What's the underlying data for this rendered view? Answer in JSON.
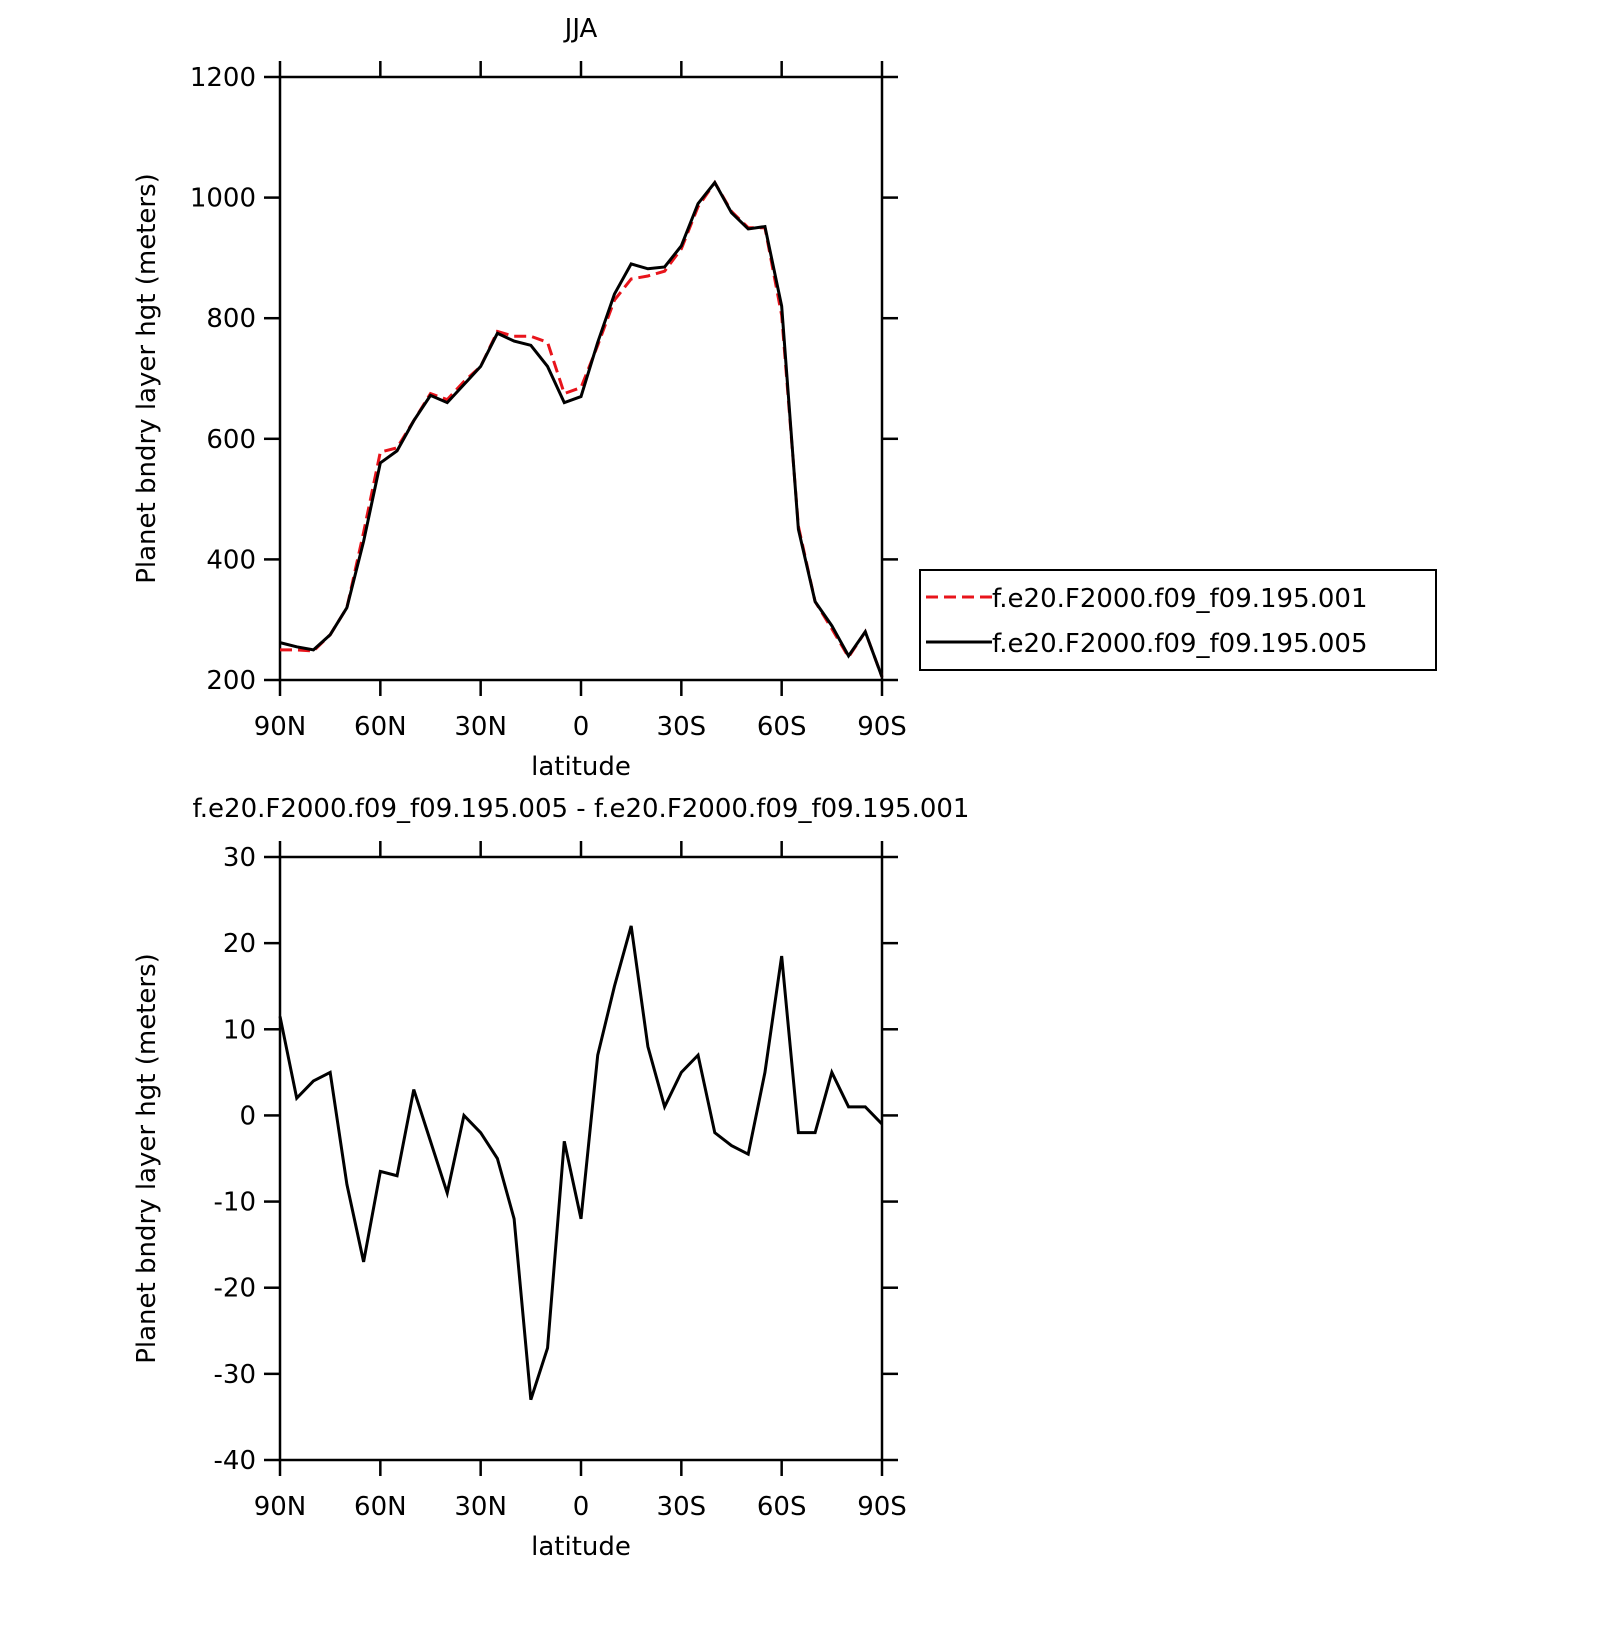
{
  "chart_data": [
    {
      "type": "line",
      "title": "JJA",
      "xlabel": "latitude",
      "ylabel": "Planet bndry layer hgt (meters)",
      "x": [
        90,
        85,
        80,
        75,
        70,
        65,
        60,
        55,
        50,
        45,
        40,
        35,
        30,
        25,
        20,
        15,
        10,
        5,
        0,
        -5,
        -10,
        -15,
        -20,
        -25,
        -30,
        -35,
        -40,
        -45,
        -50,
        -55,
        -60,
        -65,
        -70,
        -75,
        -80,
        -85,
        -90
      ],
      "xlim": [
        90,
        -90
      ],
      "xticks": [
        {
          "value": 90,
          "label": "90N"
        },
        {
          "value": 60,
          "label": "60N"
        },
        {
          "value": 30,
          "label": "30N"
        },
        0,
        {
          "value": -30,
          "label": "30S"
        },
        {
          "value": -60,
          "label": "60S"
        },
        {
          "value": -90,
          "label": "90S"
        }
      ],
      "ylim": [
        200,
        1200
      ],
      "yticks": [
        200,
        400,
        600,
        800,
        1000,
        1200
      ],
      "legend": "right",
      "series": [
        {
          "name": "f.e20.F2000.f09_f09.195.001",
          "color": "#e8141b",
          "dash": true,
          "values": [
            250,
            250,
            248,
            275,
            320,
            445,
            578,
            585,
            630,
            675,
            665,
            695,
            720,
            778,
            770,
            770,
            760,
            675,
            685,
            755,
            830,
            865,
            870,
            878,
            915,
            985,
            1025,
            977,
            950,
            950,
            805,
            455,
            330,
            285,
            238,
            280,
            205
          ]
        },
        {
          "name": "f.e20.F2000.f09_f09.195.005",
          "color": "#000000",
          "dash": false,
          "values": [
            262,
            255,
            250,
            275,
            320,
            430,
            560,
            580,
            630,
            672,
            660,
            690,
            720,
            775,
            762,
            755,
            720,
            660,
            670,
            760,
            840,
            890,
            882,
            885,
            920,
            990,
            1025,
            975,
            948,
            952,
            820,
            450,
            330,
            290,
            240,
            280,
            205
          ]
        }
      ]
    },
    {
      "type": "line",
      "title": "f.e20.F2000.f09_f09.195.005 - f.e20.F2000.f09_f09.195.001",
      "xlabel": "latitude",
      "ylabel": "Planet bndry layer hgt (meters)",
      "x": [
        90,
        85,
        80,
        75,
        70,
        65,
        60,
        55,
        50,
        45,
        40,
        35,
        30,
        25,
        20,
        15,
        10,
        5,
        0,
        -5,
        -10,
        -15,
        -20,
        -25,
        -30,
        -35,
        -40,
        -45,
        -50,
        -55,
        -60,
        -65,
        -70,
        -75,
        -80,
        -85,
        -90
      ],
      "xlim": [
        90,
        -90
      ],
      "xticks": [
        {
          "value": 90,
          "label": "90N"
        },
        {
          "value": 60,
          "label": "60N"
        },
        {
          "value": 30,
          "label": "30N"
        },
        0,
        {
          "value": -30,
          "label": "30S"
        },
        {
          "value": -60,
          "label": "60S"
        },
        {
          "value": -90,
          "label": "90S"
        }
      ],
      "ylim": [
        -40,
        30
      ],
      "yticks": [
        -40,
        -30,
        -20,
        -10,
        0,
        10,
        20,
        30
      ],
      "series": [
        {
          "color": "#000000",
          "dash": false,
          "values": [
            11.5,
            2,
            4,
            5,
            -8,
            -17,
            -6.5,
            -7,
            3,
            -3,
            -9,
            0,
            -2,
            -5,
            -12,
            -33,
            -27,
            -3,
            -12,
            7,
            15,
            22,
            8,
            1,
            5,
            7,
            -2,
            -3.5,
            -4.5,
            5,
            18.5,
            -2,
            -2,
            5,
            1,
            1,
            -1
          ]
        }
      ]
    }
  ]
}
